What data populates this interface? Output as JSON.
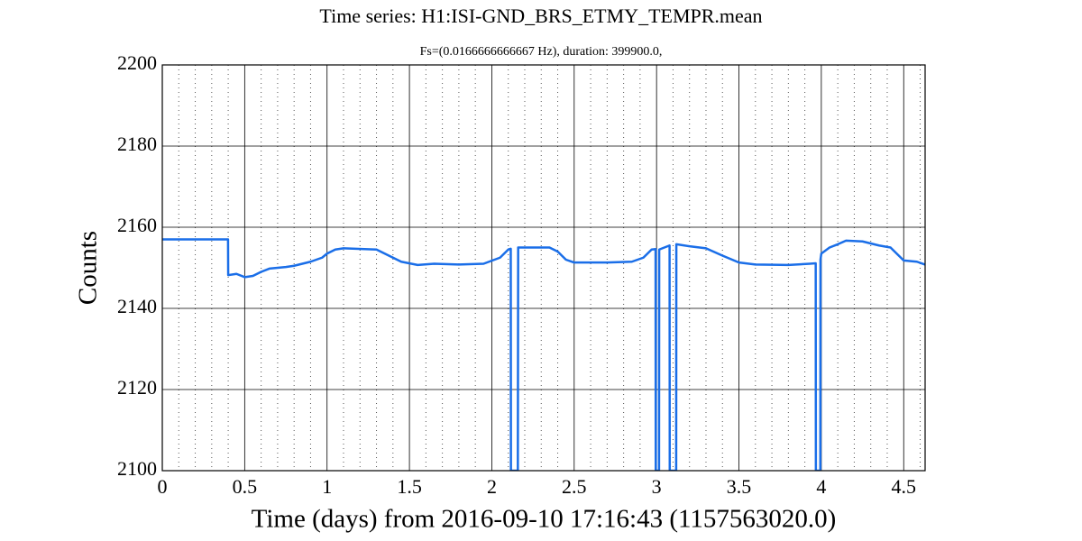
{
  "chart_data": {
    "type": "line",
    "title": "Time series:  H1:ISI-GND_BRS_ETMY_TEMPR.mean",
    "subtitle": "Fs=(0.0166666666667 Hz), duration: 399900.0,",
    "x_label": "Time (days) from 2016-09-10 17:16:43 (1157563020.0)",
    "y_label": "Counts",
    "xlim": [
      0,
      4.63
    ],
    "ylim": [
      2100,
      2200
    ],
    "xticks": [
      0,
      0.5,
      1,
      1.5,
      2,
      2.5,
      3,
      3.5,
      4,
      4.5
    ],
    "xminorticks": [
      0.1,
      0.2,
      0.3,
      0.4,
      0.6,
      0.7,
      0.8,
      0.9,
      1.1,
      1.2,
      1.3,
      1.4,
      1.6,
      1.7,
      1.8,
      1.9,
      2.1,
      2.2,
      2.3,
      2.4,
      2.6,
      2.7,
      2.8,
      2.9,
      3.1,
      3.2,
      3.3,
      3.4,
      3.6,
      3.7,
      3.8,
      3.9,
      4.1,
      4.2,
      4.3,
      4.4,
      4.6
    ],
    "yticks": [
      2100,
      2120,
      2140,
      2160,
      2180,
      2200
    ],
    "grid": true,
    "series": [
      {
        "color": "#1a6ee8",
        "x": [
          0,
          0.399,
          0.4,
          0.45,
          0.5,
          0.55,
          0.6,
          0.65,
          0.75,
          0.8,
          0.9,
          0.97,
          1.0,
          1.05,
          1.1,
          1.3,
          1.35,
          1.45,
          1.55,
          1.65,
          1.8,
          1.95,
          2.05,
          2.1,
          2.115,
          2.116,
          2.158,
          2.16,
          2.35,
          2.4,
          2.45,
          2.5,
          2.7,
          2.85,
          2.92,
          2.97,
          2.994,
          2.995,
          3.015,
          3.016,
          3.079,
          3.08,
          3.119,
          3.12,
          3.2,
          3.3,
          3.4,
          3.5,
          3.6,
          3.8,
          3.93,
          3.966,
          3.967,
          3.994,
          3.995,
          4.0,
          4.05,
          4.1,
          4.15,
          4.25,
          4.35,
          4.42,
          4.47,
          4.5,
          4.58,
          4.63
        ],
        "values": [
          2157,
          2157,
          2148.2,
          2148.5,
          2147.7,
          2148,
          2149,
          2149.8,
          2150.2,
          2150.5,
          2151.5,
          2152.5,
          2153.5,
          2154.5,
          2154.8,
          2154.5,
          2153.5,
          2151.5,
          2150.7,
          2151,
          2150.8,
          2151,
          2152.5,
          2154.5,
          2154.7,
          2100,
          2100,
          2155,
          2155,
          2154,
          2152,
          2151.3,
          2151.3,
          2151.5,
          2152.5,
          2154.5,
          2154.6,
          2100,
          2100,
          2154.5,
          2155.5,
          2100,
          2100,
          2155.8,
          2155.3,
          2154.8,
          2153,
          2151.3,
          2150.8,
          2150.7,
          2151,
          2151.1,
          2100,
          2100,
          2152,
          2153.5,
          2155,
          2155.8,
          2156.7,
          2156.5,
          2155.5,
          2155,
          2153,
          2151.8,
          2151.5,
          2150.8
        ]
      }
    ]
  }
}
